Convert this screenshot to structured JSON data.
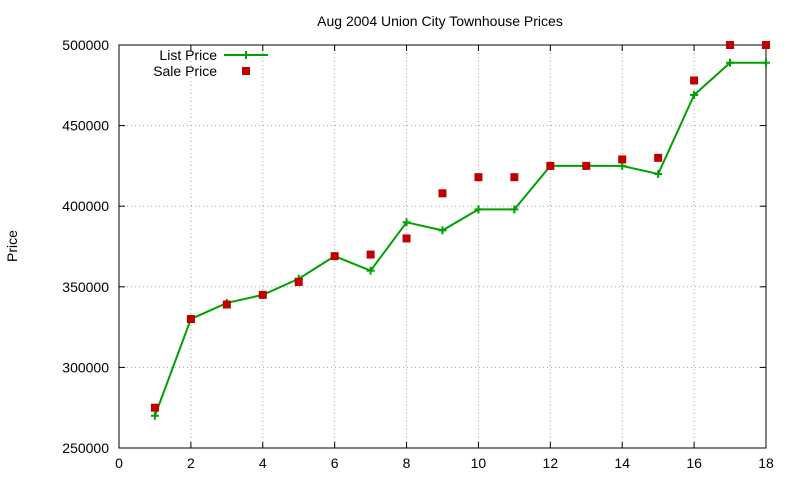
{
  "chart_data": {
    "type": "line",
    "title": "Aug 2004 Union City Townhouse Prices",
    "xlabel": "",
    "ylabel": "Price",
    "xlim": [
      0,
      18
    ],
    "ylim": [
      250000,
      500000
    ],
    "xticks": [
      0,
      2,
      4,
      6,
      8,
      10,
      12,
      14,
      16,
      18
    ],
    "yticks": [
      250000,
      300000,
      350000,
      400000,
      450000,
      500000
    ],
    "grid": true,
    "legend_position": "top-left",
    "series": [
      {
        "name": "List Price",
        "kind": "line-with-plus-markers",
        "color": "#00a000",
        "x": [
          1,
          2,
          3,
          4,
          5,
          6,
          7,
          8,
          9,
          10,
          11,
          12,
          13,
          14,
          15,
          16,
          17,
          18
        ],
        "y": [
          270000,
          330000,
          340000,
          345000,
          355000,
          369000,
          360000,
          390000,
          385000,
          398000,
          398000,
          425000,
          425000,
          425000,
          420000,
          469000,
          489000,
          489000
        ]
      },
      {
        "name": "Sale Price",
        "kind": "square-markers",
        "color": "#c00000",
        "x": [
          1,
          2,
          3,
          4,
          5,
          6,
          7,
          8,
          9,
          10,
          11,
          12,
          13,
          14,
          15,
          16,
          17,
          18
        ],
        "y": [
          275000,
          330000,
          339000,
          345000,
          353000,
          369000,
          370000,
          380000,
          408000,
          418000,
          418000,
          425000,
          425000,
          429000,
          430000,
          478000,
          500000,
          500000
        ]
      }
    ]
  }
}
